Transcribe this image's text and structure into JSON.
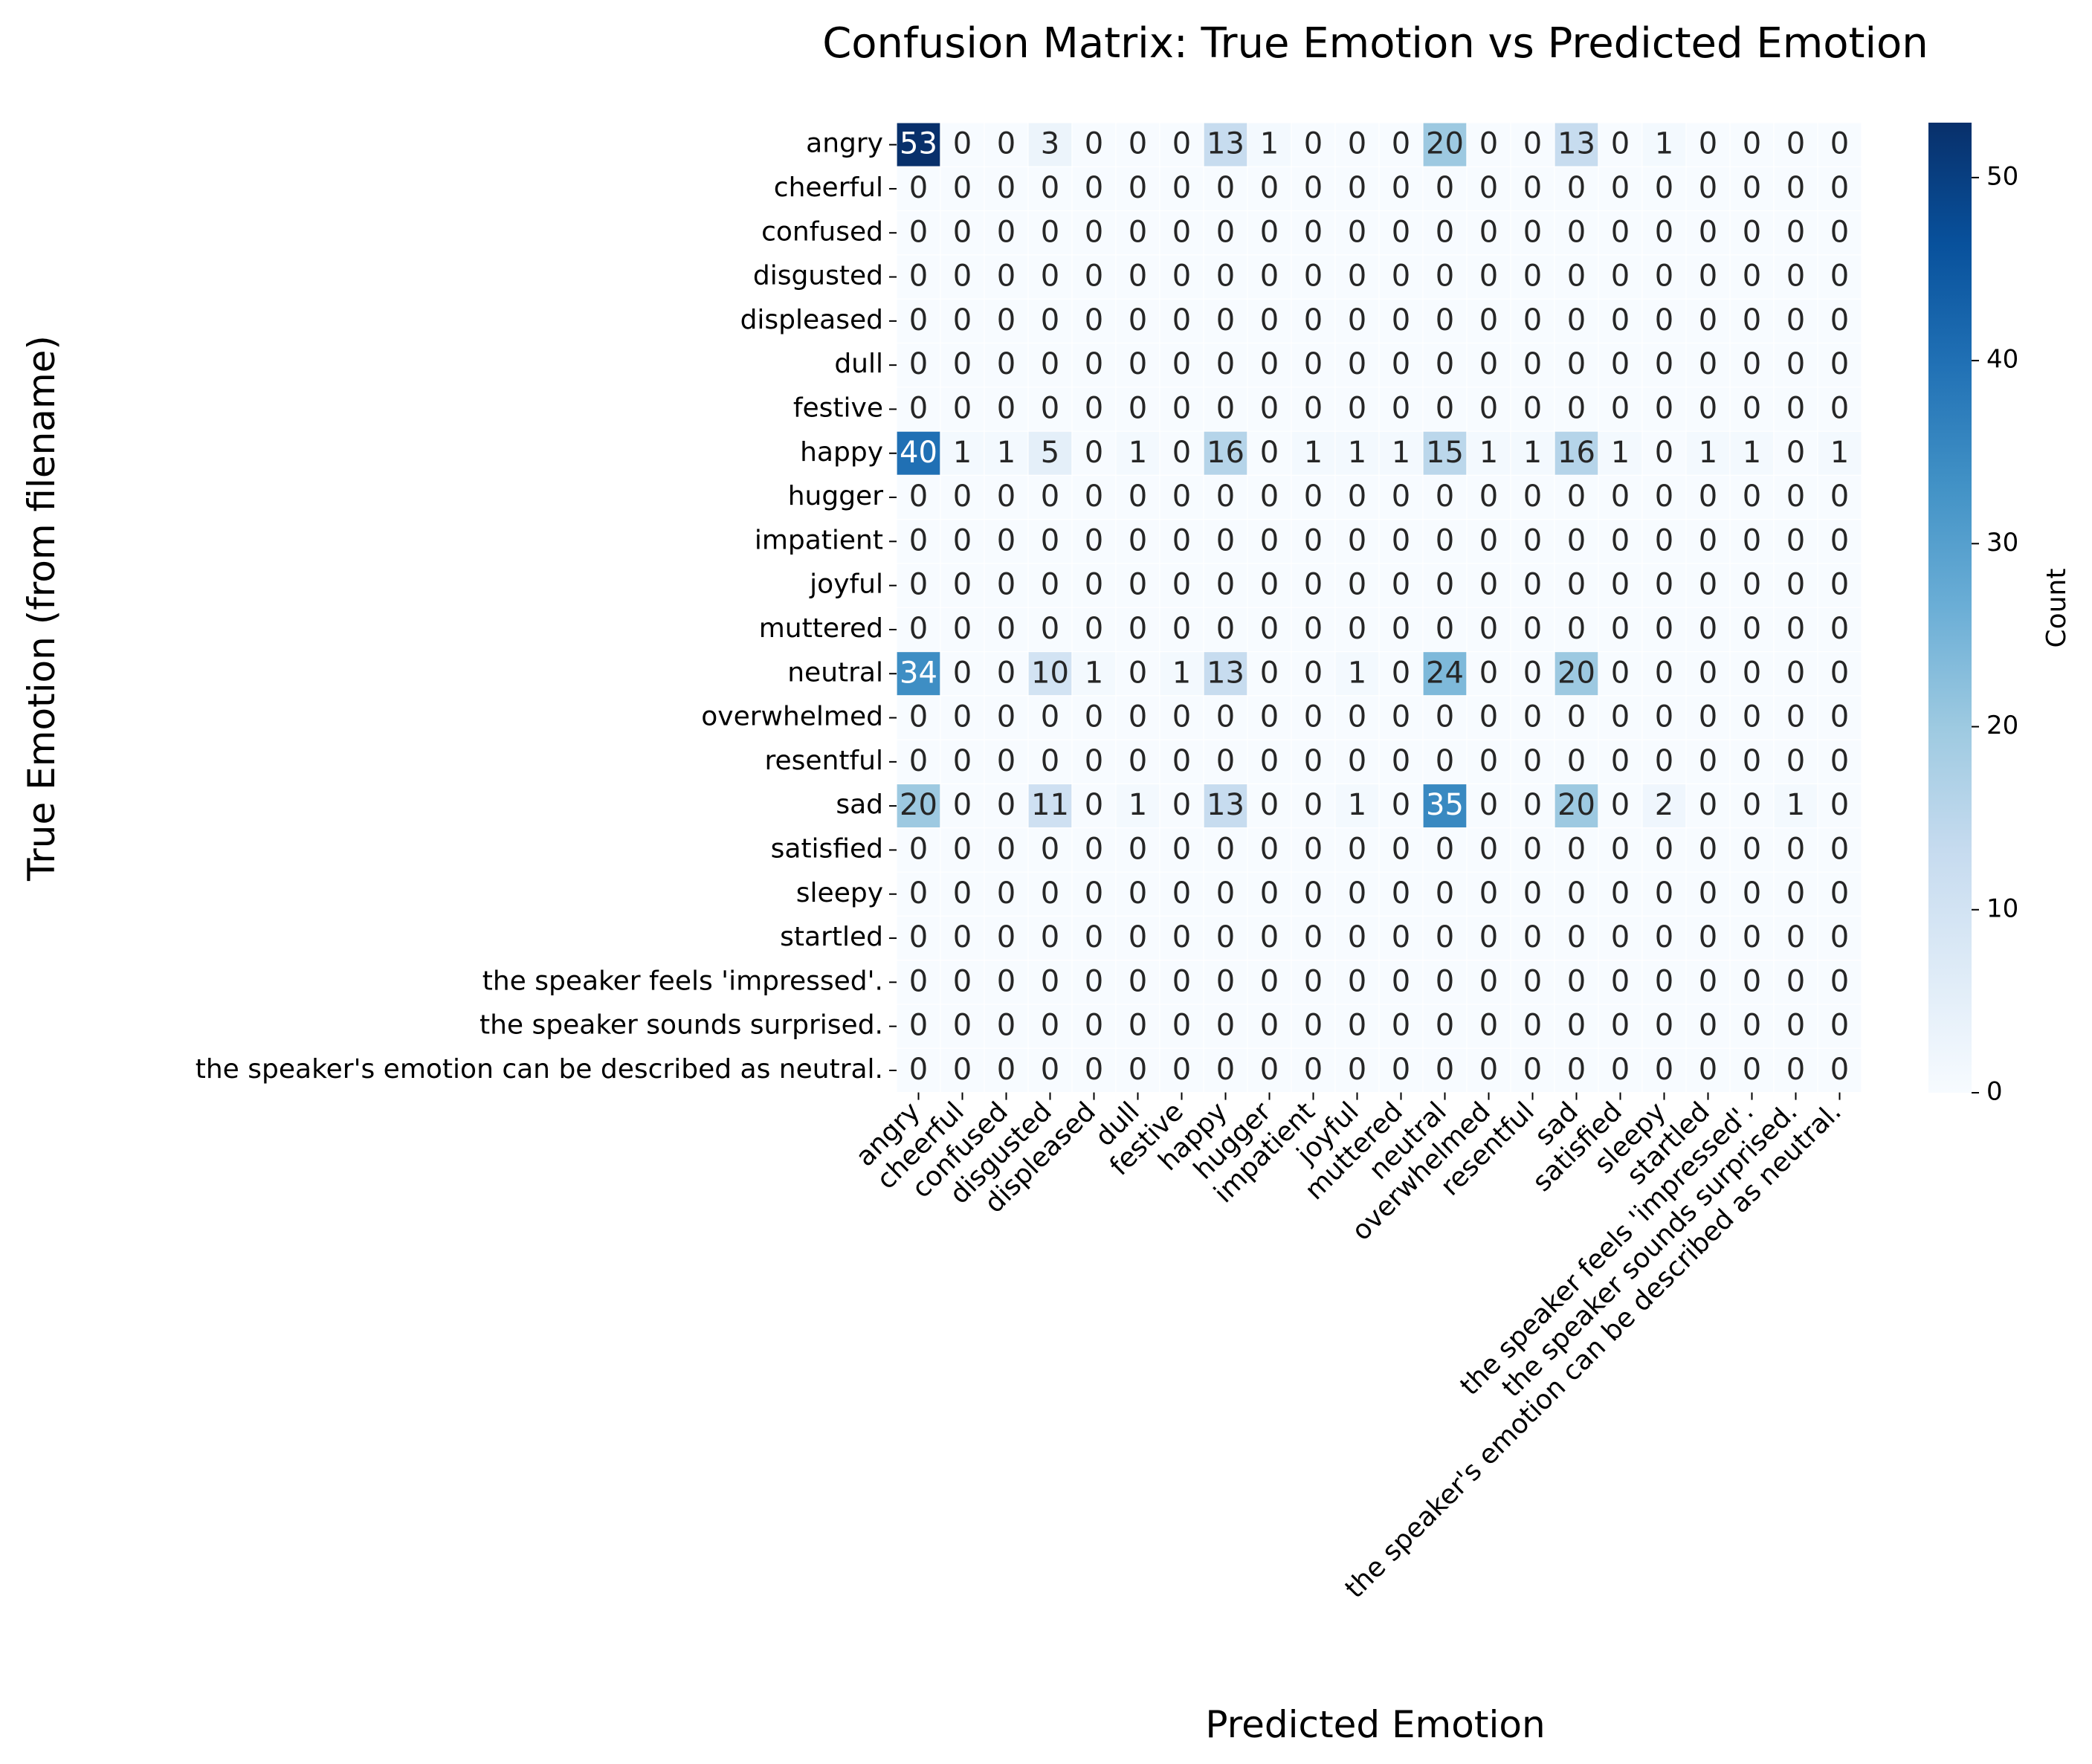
{
  "chart_data": {
    "type": "heatmap",
    "title": "Confusion Matrix: True Emotion vs Predicted Emotion",
    "xlabel": "Predicted Emotion",
    "ylabel": "True Emotion (from filename)",
    "colorbar": {
      "label": "Count",
      "ticks": [
        0,
        10,
        20,
        30,
        40,
        50
      ],
      "range": [
        0,
        53
      ],
      "colormap": "Blues"
    },
    "rows": [
      "angry",
      "cheerful",
      "confused",
      "disgusted",
      "displeased",
      "dull",
      "festive",
      "happy",
      "hugger",
      "impatient",
      "joyful",
      "muttered",
      "neutral",
      "overwhelmed",
      "resentful",
      "sad",
      "satisfied",
      "sleepy",
      "startled",
      "the speaker feels 'impressed'.",
      "the speaker sounds surprised.",
      "the speaker's emotion can be described as neutral."
    ],
    "columns": [
      "angry",
      "cheerful",
      "confused",
      "disgusted",
      "displeased",
      "dull",
      "festive",
      "happy",
      "hugger",
      "impatient",
      "joyful",
      "muttered",
      "neutral",
      "overwhelmed",
      "resentful",
      "sad",
      "satisfied",
      "sleepy",
      "startled",
      "the speaker feels 'impressed'.",
      "the speaker sounds surprised.",
      "the speaker's emotion can be described as neutral."
    ],
    "values": [
      [
        53,
        0,
        0,
        3,
        0,
        0,
        0,
        13,
        1,
        0,
        0,
        0,
        20,
        0,
        0,
        13,
        0,
        1,
        0,
        0,
        0,
        0
      ],
      [
        0,
        0,
        0,
        0,
        0,
        0,
        0,
        0,
        0,
        0,
        0,
        0,
        0,
        0,
        0,
        0,
        0,
        0,
        0,
        0,
        0,
        0
      ],
      [
        0,
        0,
        0,
        0,
        0,
        0,
        0,
        0,
        0,
        0,
        0,
        0,
        0,
        0,
        0,
        0,
        0,
        0,
        0,
        0,
        0,
        0
      ],
      [
        0,
        0,
        0,
        0,
        0,
        0,
        0,
        0,
        0,
        0,
        0,
        0,
        0,
        0,
        0,
        0,
        0,
        0,
        0,
        0,
        0,
        0
      ],
      [
        0,
        0,
        0,
        0,
        0,
        0,
        0,
        0,
        0,
        0,
        0,
        0,
        0,
        0,
        0,
        0,
        0,
        0,
        0,
        0,
        0,
        0
      ],
      [
        0,
        0,
        0,
        0,
        0,
        0,
        0,
        0,
        0,
        0,
        0,
        0,
        0,
        0,
        0,
        0,
        0,
        0,
        0,
        0,
        0,
        0
      ],
      [
        0,
        0,
        0,
        0,
        0,
        0,
        0,
        0,
        0,
        0,
        0,
        0,
        0,
        0,
        0,
        0,
        0,
        0,
        0,
        0,
        0,
        0
      ],
      [
        40,
        1,
        1,
        5,
        0,
        1,
        0,
        16,
        0,
        1,
        1,
        1,
        15,
        1,
        1,
        16,
        1,
        0,
        1,
        1,
        0,
        1
      ],
      [
        0,
        0,
        0,
        0,
        0,
        0,
        0,
        0,
        0,
        0,
        0,
        0,
        0,
        0,
        0,
        0,
        0,
        0,
        0,
        0,
        0,
        0
      ],
      [
        0,
        0,
        0,
        0,
        0,
        0,
        0,
        0,
        0,
        0,
        0,
        0,
        0,
        0,
        0,
        0,
        0,
        0,
        0,
        0,
        0,
        0
      ],
      [
        0,
        0,
        0,
        0,
        0,
        0,
        0,
        0,
        0,
        0,
        0,
        0,
        0,
        0,
        0,
        0,
        0,
        0,
        0,
        0,
        0,
        0
      ],
      [
        0,
        0,
        0,
        0,
        0,
        0,
        0,
        0,
        0,
        0,
        0,
        0,
        0,
        0,
        0,
        0,
        0,
        0,
        0,
        0,
        0,
        0
      ],
      [
        34,
        0,
        0,
        10,
        1,
        0,
        1,
        13,
        0,
        0,
        1,
        0,
        24,
        0,
        0,
        20,
        0,
        0,
        0,
        0,
        0,
        0
      ],
      [
        0,
        0,
        0,
        0,
        0,
        0,
        0,
        0,
        0,
        0,
        0,
        0,
        0,
        0,
        0,
        0,
        0,
        0,
        0,
        0,
        0,
        0
      ],
      [
        0,
        0,
        0,
        0,
        0,
        0,
        0,
        0,
        0,
        0,
        0,
        0,
        0,
        0,
        0,
        0,
        0,
        0,
        0,
        0,
        0,
        0
      ],
      [
        20,
        0,
        0,
        11,
        0,
        1,
        0,
        13,
        0,
        0,
        1,
        0,
        35,
        0,
        0,
        20,
        0,
        2,
        0,
        0,
        1,
        0
      ],
      [
        0,
        0,
        0,
        0,
        0,
        0,
        0,
        0,
        0,
        0,
        0,
        0,
        0,
        0,
        0,
        0,
        0,
        0,
        0,
        0,
        0,
        0
      ],
      [
        0,
        0,
        0,
        0,
        0,
        0,
        0,
        0,
        0,
        0,
        0,
        0,
        0,
        0,
        0,
        0,
        0,
        0,
        0,
        0,
        0,
        0
      ],
      [
        0,
        0,
        0,
        0,
        0,
        0,
        0,
        0,
        0,
        0,
        0,
        0,
        0,
        0,
        0,
        0,
        0,
        0,
        0,
        0,
        0,
        0
      ],
      [
        0,
        0,
        0,
        0,
        0,
        0,
        0,
        0,
        0,
        0,
        0,
        0,
        0,
        0,
        0,
        0,
        0,
        0,
        0,
        0,
        0,
        0
      ],
      [
        0,
        0,
        0,
        0,
        0,
        0,
        0,
        0,
        0,
        0,
        0,
        0,
        0,
        0,
        0,
        0,
        0,
        0,
        0,
        0,
        0,
        0
      ],
      [
        0,
        0,
        0,
        0,
        0,
        0,
        0,
        0,
        0,
        0,
        0,
        0,
        0,
        0,
        0,
        0,
        0,
        0,
        0,
        0,
        0,
        0
      ]
    ]
  }
}
